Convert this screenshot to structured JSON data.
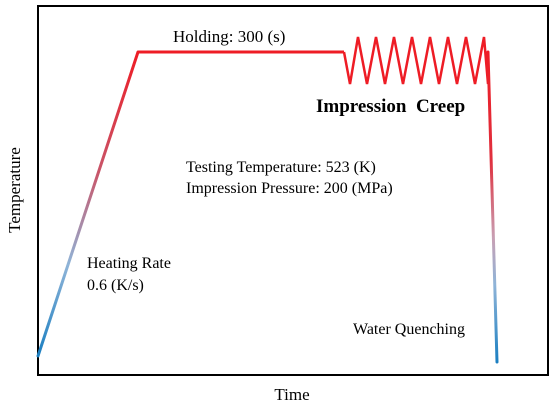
{
  "axes": {
    "x_label": "Time",
    "y_label": "Temperature"
  },
  "annotations": {
    "holding": "Holding: 300 (s)",
    "impression_creep": "Impression  Creep",
    "testing_temperature": "Testing Temperature: 523 (K)",
    "impression_pressure": "Impression Pressure: 200 (MPa)",
    "heating_rate_line1": "Heating Rate",
    "heating_rate_line2": "0.6 (K/s)",
    "water_quenching": "Water Quenching"
  },
  "colors": {
    "hot": "#ee1c25",
    "mid": "#c8566a",
    "cool": "#8fb4d8",
    "cold": "#1b7fc1",
    "axis": "#000000"
  }
}
